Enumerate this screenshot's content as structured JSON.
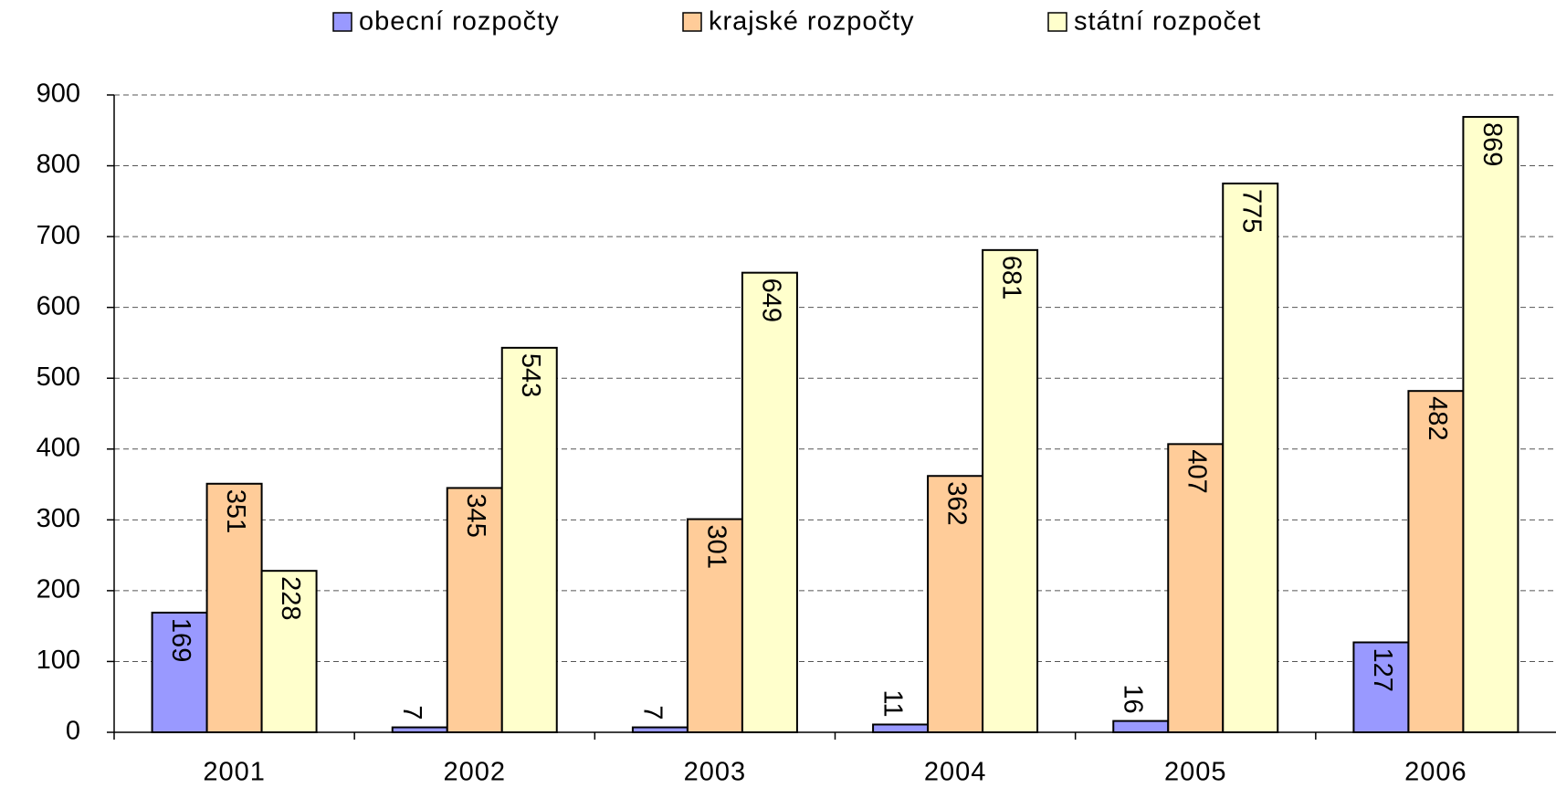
{
  "chart_data": {
    "type": "bar",
    "categories": [
      "2001",
      "2002",
      "2003",
      "2004",
      "2005",
      "2006"
    ],
    "series": [
      {
        "name": "obecní rozpočty",
        "color": "#9999ff",
        "values": [
          169,
          7,
          7,
          11,
          16,
          127
        ]
      },
      {
        "name": "krajské rozpočty",
        "color": "#ffcc99",
        "values": [
          351,
          345,
          301,
          362,
          407,
          482
        ]
      },
      {
        "name": "státní rozpočet",
        "color": "#ffffcc",
        "values": [
          228,
          543,
          649,
          681,
          775,
          869
        ]
      }
    ],
    "ylim": [
      0,
      900
    ],
    "yticks": [
      0,
      100,
      200,
      300,
      400,
      500,
      600,
      700,
      800,
      900
    ],
    "grid": true,
    "legend": "top"
  }
}
